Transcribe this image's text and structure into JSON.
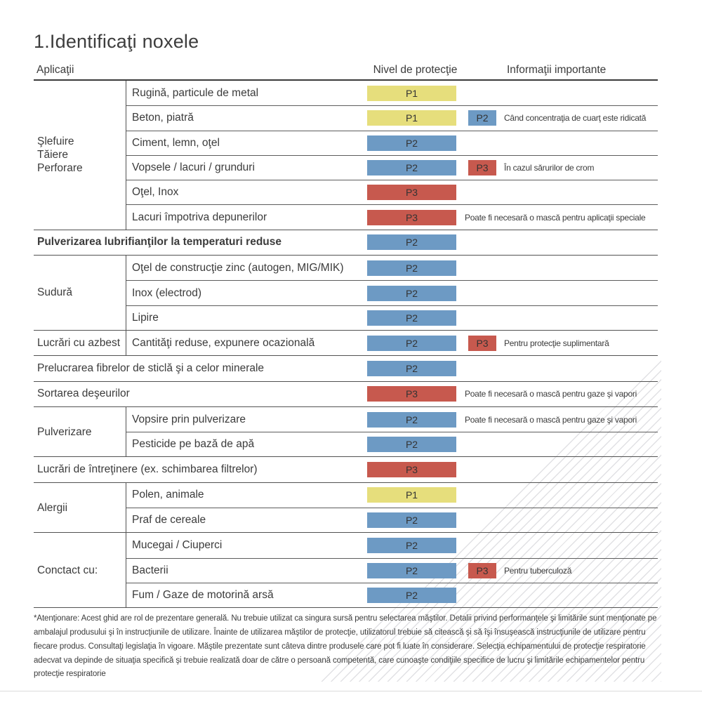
{
  "title": "1.Identificaţi noxele",
  "columns": {
    "applications": "Aplicaţii",
    "protection_level": "Nivel de protecţie",
    "important_info": "Informaţii importante"
  },
  "badge_colors": {
    "P1": "#e6de7c",
    "P2": "#6d9ac4",
    "P3": "#c7594e"
  },
  "sections": [
    {
      "group": [
        "Şlefuire",
        "Tăiere",
        "Perforare"
      ],
      "rows": [
        {
          "label": "Rugină, particule de metal",
          "level": "P1"
        },
        {
          "label": "Beton, piatră",
          "level": "P1",
          "secondary": "P2",
          "note": "Când concentraţia de cuarţ este ridicată"
        },
        {
          "label": "Ciment, lemn, oţel",
          "level": "P2"
        },
        {
          "label": "Vopsele / lacuri / grunduri",
          "level": "P2",
          "secondary": "P3",
          "note": "În cazul sărurilor de crom"
        },
        {
          "label": "Oţel, Inox",
          "level": "P3"
        },
        {
          "label": "Lacuri împotriva depunerilor",
          "level": "P3",
          "note": "Poate fi necesară o mască pentru aplicaţii speciale"
        }
      ]
    },
    {
      "rows": [
        {
          "label": "Pulverizarea lubrifianţilor la temperaturi reduse",
          "level": "P2",
          "bold": true
        }
      ]
    },
    {
      "group": [
        "Sudură"
      ],
      "rows": [
        {
          "label": "Oţel de construcţie zinc (autogen, MIG/MIK)",
          "level": "P2"
        },
        {
          "label": "Inox (electrod)",
          "level": "P2"
        },
        {
          "label": "Lipire",
          "level": "P2"
        }
      ]
    },
    {
      "group": [
        "Lucrări cu azbest"
      ],
      "rows": [
        {
          "label": "Cantităţi reduse, expunere ocazională",
          "level": "P2",
          "secondary": "P3",
          "note": "Pentru protecţie suplimentară"
        }
      ]
    },
    {
      "rows": [
        {
          "label": "Prelucrarea fibrelor de sticlă şi a celor minerale",
          "level": "P2"
        }
      ]
    },
    {
      "rows": [
        {
          "label": "Sortarea deşeurilor",
          "level": "P3",
          "note": "Poate fi necesară o mască pentru gaze şi vapori"
        }
      ]
    },
    {
      "group": [
        "Pulverizare"
      ],
      "rows": [
        {
          "label": "Vopsire prin pulverizare",
          "level": "P2",
          "note": "Poate fi necesară o mască pentru gaze şi vapori"
        },
        {
          "label": "Pesticide pe bază de apă",
          "level": "P2"
        }
      ]
    },
    {
      "rows": [
        {
          "label": "Lucrări de întreţinere (ex. schimbarea filtrelor)",
          "level": "P3"
        }
      ]
    },
    {
      "group": [
        "Alergii"
      ],
      "rows": [
        {
          "label": "Polen, animale",
          "level": "P1"
        },
        {
          "label": "Praf de cereale",
          "level": "P2"
        }
      ]
    },
    {
      "group": [
        "Conctact cu:"
      ],
      "rows": [
        {
          "label": "Mucegai / Ciuperci",
          "level": "P2"
        },
        {
          "label": "Bacterii",
          "level": "P2",
          "secondary": "P3",
          "note": "Pentru tuberculoză"
        },
        {
          "label": "Fum / Gaze de motorină arsă",
          "level": "P2"
        }
      ]
    }
  ],
  "footnote": "*Atenţionare: Acest ghid are rol de prezentare generală. Nu trebuie utilizat ca singura sursă pentru selectarea măştilor. Detalii privind performanţele şi limitările sunt menţionate pe ambalajul produsului şi în instrucţiunile de utilizare. Înainte de utilizarea măştilor de protecţie, utilizatorul trebuie să citească şi să îşi însuşească instrucţiunile de utilizare pentru fiecare produs. Consultaţi legislaţia în vigoare. Măştile prezentate sunt câteva dintre produsele care pot fi luate în considerare. Selecţia echipamentului de protecţie respiratorie adecvat va depinde de situaţia specifică şi trebuie realizată doar de către o persoană competentă, care cunoaşte condiţiile specifice de lucru şi limitările echipamentelor pentru protecţie respiratorie"
}
